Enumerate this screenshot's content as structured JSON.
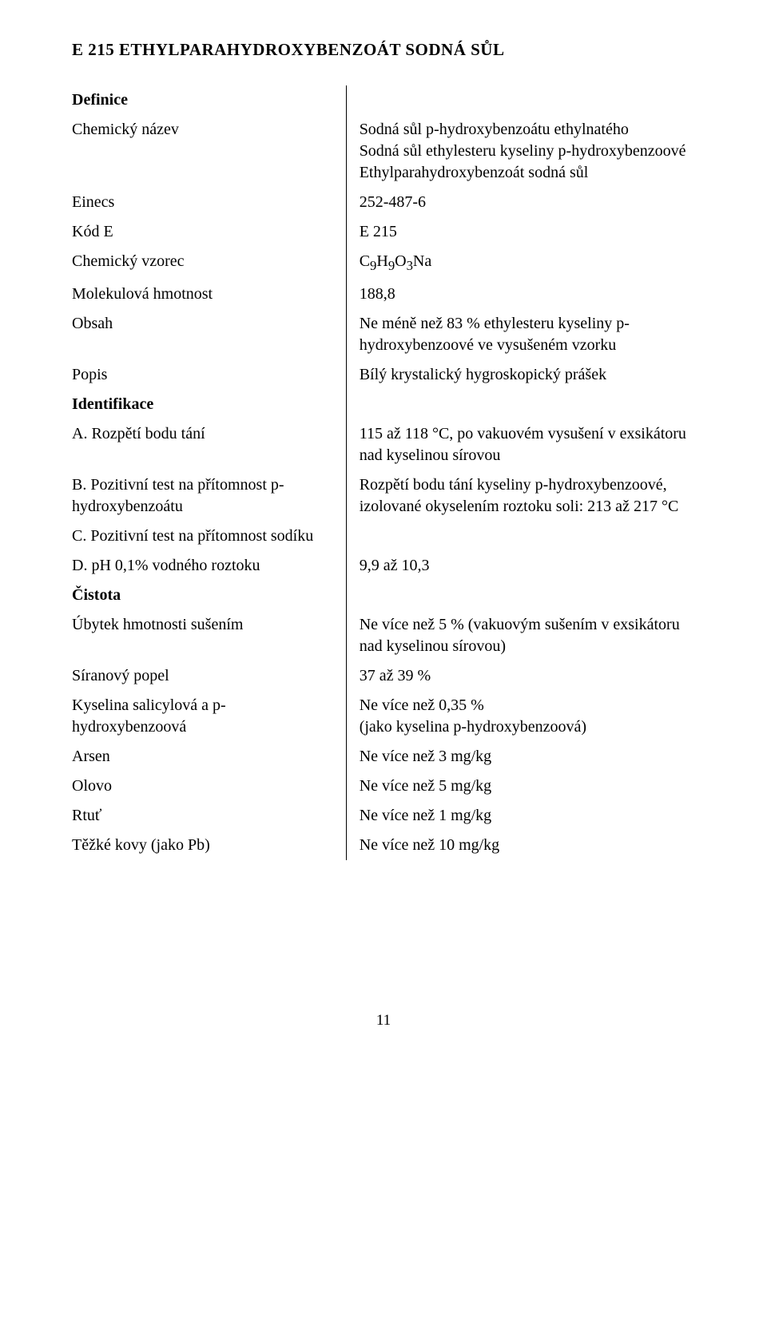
{
  "page": {
    "title": "E 215  ETHYLPARAHYDROXYBENZOÁT  SODNÁ  SŮL",
    "pageNumber": "11"
  },
  "sections": {
    "definice": "Definice",
    "identifikace": "Identifikace",
    "cistota": "Čistota"
  },
  "rows": {
    "chemName": {
      "l": "Chemický název",
      "r": "Sodná sůl p-hydroxybenzoátu ethylnatého\nSodná sůl ethylesteru kyseliny p-hydroxybenzoové\nEthylparahydroxybenzoát sodná sůl"
    },
    "einecs": {
      "l": "Einecs",
      "r": "252-487-6"
    },
    "kodE": {
      "l": "Kód E",
      "r": "E 215"
    },
    "vzorec": {
      "l": "Chemický vzorec",
      "r_html": "C<sub>9</sub>H<sub>9</sub>O<sub>3</sub>Na"
    },
    "mol": {
      "l": "Molekulová hmotnost",
      "r": "188,8"
    },
    "obsah": {
      "l": "Obsah",
      "r": "Ne méně než 83 % ethylesteru kyseliny p-hydroxybenzoové ve vysušeném vzorku"
    },
    "popis": {
      "l": "Popis",
      "r": "Bílý krystalický hygroskopický prášek"
    },
    "a": {
      "l": "A. Rozpětí bodu tání",
      "r": "115 až 118 °C, po vakuovém vysušení v exsikátoru nad kyselinou sírovou"
    },
    "b": {
      "l": "B. Pozitivní test na přítomnost p-hydroxybenzoátu",
      "r": "Rozpětí bodu tání kyseliny p-hydroxybenzoové, izolované okyselením roztoku soli: 213 až 217 °C"
    },
    "c": {
      "l": "C. Pozitivní test na přítomnost sodíku",
      "r": ""
    },
    "d": {
      "l": "D. pH 0,1% vodného roztoku",
      "r": "9,9 až 10,3"
    },
    "ubytek": {
      "l": "Úbytek hmotnosti sušením",
      "r": "Ne více než 5 % (vakuovým sušením v exsikátoru nad kyselinou sírovou)"
    },
    "siran": {
      "l": "Síranový popel",
      "r": "37 až 39 %"
    },
    "salic": {
      "l": "Kyselina salicylová a p-hydroxybenzoová",
      "r": "Ne více než 0,35 %\n(jako kyselina p-hydroxybenzoová)"
    },
    "arsen": {
      "l": "Arsen",
      "r": "Ne více než 3 mg/kg"
    },
    "olovo": {
      "l": "Olovo",
      "r": "Ne více než 5 mg/kg"
    },
    "rtut": {
      "l": "Rtuť",
      "r": "Ne více než 1 mg/kg"
    },
    "tezke": {
      "l": "Těžké kovy (jako Pb)",
      "r": "Ne více než 10 mg/kg"
    }
  }
}
